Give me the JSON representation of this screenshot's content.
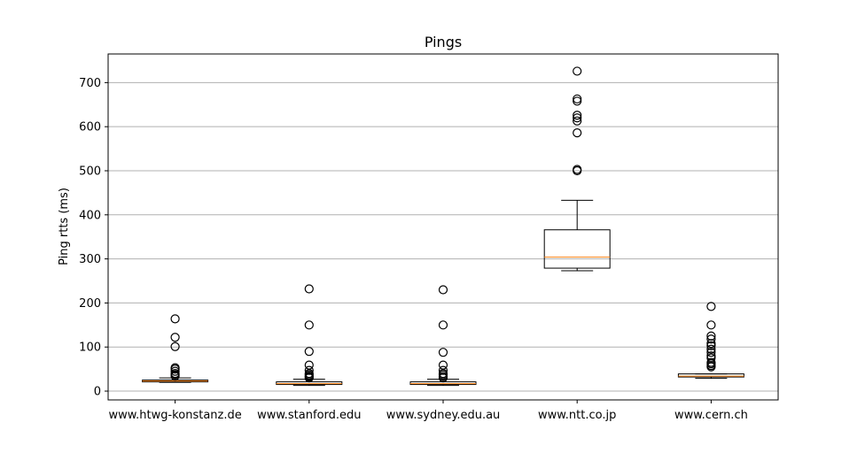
{
  "chart_data": {
    "type": "boxplot",
    "title": "Pings",
    "xlabel": "",
    "ylabel": "Ping rtts (ms)",
    "ylim": [
      -20,
      765
    ],
    "yticks": [
      0,
      100,
      200,
      300,
      400,
      500,
      600,
      700
    ],
    "grid": "horizontal",
    "colors": {
      "box": "#000000",
      "median": "#ff7f0e",
      "grid": "#b0b0b0"
    },
    "categories": [
      "www.htwg-konstanz.de",
      "www.stanford.edu",
      "www.sydney.edu.au",
      "www.ntt.co.jp",
      "www.cern.ch"
    ],
    "boxes": [
      {
        "name": "www.htwg-konstanz.de",
        "whisker_low": 20,
        "q1": 21,
        "median": 23,
        "q3": 25,
        "whisker_high": 30,
        "fliers": [
          34,
          37,
          40,
          45,
          50,
          53,
          101,
          122,
          164
        ]
      },
      {
        "name": "www.stanford.edu",
        "whisker_low": 13,
        "q1": 15,
        "median": 17,
        "q3": 21,
        "whisker_high": 27,
        "fliers": [
          30,
          32,
          34,
          37,
          40,
          47,
          59,
          90,
          150,
          232
        ]
      },
      {
        "name": "www.sydney.edu.au",
        "whisker_low": 13,
        "q1": 15,
        "median": 17,
        "q3": 21,
        "whisker_high": 27,
        "fliers": [
          30,
          33,
          37,
          40,
          47,
          59,
          88,
          150,
          230
        ]
      },
      {
        "name": "www.ntt.co.jp",
        "whisker_low": 273,
        "q1": 279,
        "median": 304,
        "q3": 366,
        "whisker_high": 433,
        "fliers": [
          500,
          503,
          586,
          613,
          620,
          626,
          658,
          663,
          726
        ]
      },
      {
        "name": "www.cern.ch",
        "whisker_low": 29,
        "q1": 32,
        "median": 34,
        "q3": 39,
        "whisker_high": 39,
        "fliers": [
          55,
          58,
          62,
          65,
          75,
          80,
          88,
          95,
          103,
          108,
          118,
          125,
          150,
          192
        ]
      }
    ]
  }
}
